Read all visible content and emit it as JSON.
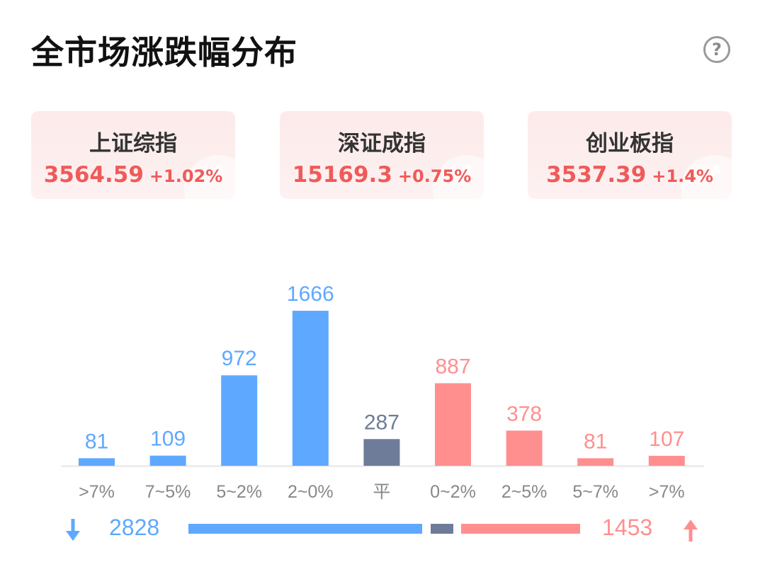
{
  "header": {
    "title": "全市场涨跌幅分布",
    "help_icon": "question-circle-icon",
    "help_glyph": "?"
  },
  "indices": [
    {
      "name": "上证综指",
      "value": "3564.59",
      "change": "+1.02%"
    },
    {
      "name": "深证成指",
      "value": "15169.3",
      "change": "+0.75%"
    },
    {
      "name": "创业板指",
      "value": "3537.39",
      "change": "+1.4%"
    }
  ],
  "colors": {
    "down": "#5fa8ff",
    "flat": "#6e7c99",
    "up": "#ff8f8f",
    "card_text": "#f05a5a",
    "axis_label": "#888888"
  },
  "chart_data": {
    "type": "bar",
    "categories": [
      ">7%",
      "7~5%",
      "5~2%",
      "2~0%",
      "平",
      "0~2%",
      "2~5%",
      "5~7%",
      ">7%"
    ],
    "values": [
      81,
      109,
      972,
      1666,
      287,
      887,
      378,
      81,
      107
    ],
    "groups": [
      "down",
      "down",
      "down",
      "down",
      "flat",
      "up",
      "up",
      "up",
      "up"
    ],
    "title": "",
    "xlabel": "",
    "ylabel": "",
    "ylim": [
      0,
      1666
    ],
    "grid": false,
    "legend": "none"
  },
  "summary": {
    "down_total": "2828",
    "up_total": "1453",
    "down_icon": "arrow-down-icon",
    "up_icon": "arrow-up-icon"
  }
}
